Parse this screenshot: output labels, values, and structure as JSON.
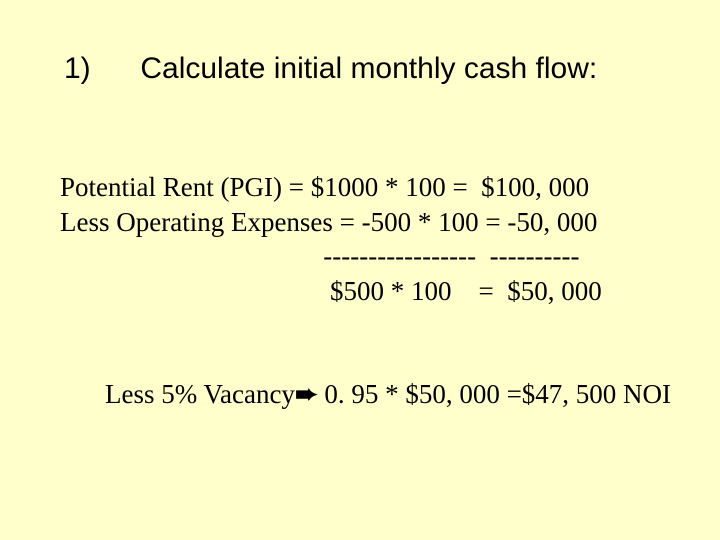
{
  "background_color": "#ffffcc",
  "text_color": "#000000",
  "title": {
    "number": "1)",
    "text": "Calculate initial monthly cash flow:",
    "font_family": "Arial",
    "font_size_pt": 22
  },
  "body": {
    "font_family": "Times New Roman",
    "font_size_pt": 20,
    "lines": {
      "l1": "Potential Rent (PGI) = $1000 * 100 =  $100, 000",
      "l2": "Less Operating Expenses = -500 * 100 = -50, 000",
      "l3": "                                       -----------------  ----------",
      "l4": "                                        $500 * 100    =  $50, 000"
    }
  },
  "vacancy": {
    "pre": "Less 5% Vacancy",
    "arrow": "➨",
    "post": " 0. 95 * $50, 000 =$47, 500 NOI"
  }
}
